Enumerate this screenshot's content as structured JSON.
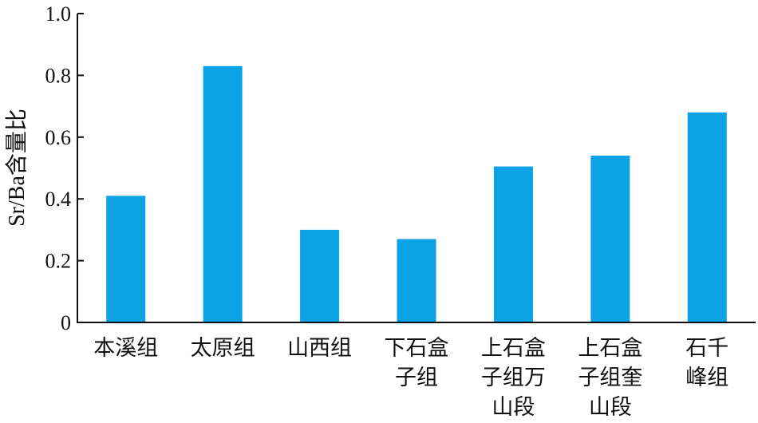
{
  "chart_data": {
    "type": "bar",
    "categories": [
      [
        "本溪组"
      ],
      [
        "太原组"
      ],
      [
        "山西组"
      ],
      [
        "下石盒",
        "子组"
      ],
      [
        "上石盒",
        "子组万",
        "山段"
      ],
      [
        "上石盒",
        "子组奎",
        "山段"
      ],
      [
        "石千",
        "峰组"
      ]
    ],
    "values": [
      0.41,
      0.83,
      0.3,
      0.27,
      0.505,
      0.54,
      0.68
    ],
    "ylabel": "Sr/Ba含量比",
    "ylim": [
      0,
      1.0
    ],
    "yticks": [
      "0",
      "0.2",
      "0.4",
      "0.6",
      "0.8",
      "1.0"
    ],
    "bar_color": "#0BA3E6",
    "grid": false,
    "legend": "none"
  }
}
